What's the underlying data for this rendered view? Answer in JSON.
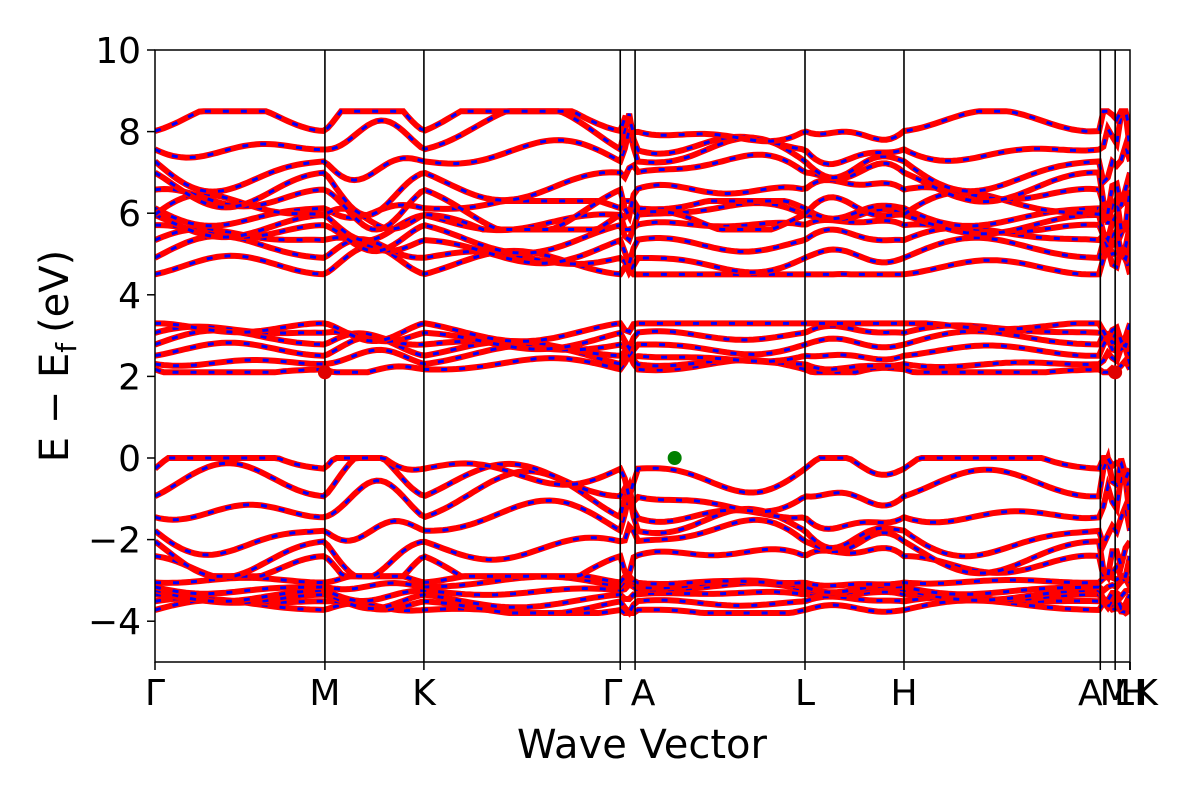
{
  "chart_data": {
    "type": "line",
    "title": "",
    "xlabel": "Wave Vector",
    "ylabel": "E − E",
    "ylabel_sub": "f",
    "ylabel_unit": "(eV)",
    "ylim": [
      -5,
      10
    ],
    "yticks": [
      -4,
      -2,
      0,
      2,
      4,
      6,
      8,
      10
    ],
    "ytick_labels": [
      "−4",
      "−2",
      "0",
      "2",
      "4",
      "6",
      "8",
      "10"
    ],
    "x_range": [
      0,
      5.91
    ],
    "kpoints": [
      {
        "label": "Γ",
        "x": 0.0
      },
      {
        "label": "M",
        "x": 1.03
      },
      {
        "label": "K",
        "x": 1.63
      },
      {
        "label": "Γ",
        "x": 2.82
      },
      {
        "label": "A",
        "x": 2.91
      },
      {
        "label": "L",
        "x": 3.94
      },
      {
        "label": "H",
        "x": 4.54
      },
      {
        "label": "A",
        "x": 5.73
      },
      {
        "label": "M",
        "x": 5.82
      },
      {
        "label": "L",
        "x": 5.91
      },
      {
        "label": "H",
        "x": 5.91
      },
      {
        "label": "K",
        "x": 5.91
      }
    ],
    "band_colors": {
      "primary": "#ff0000",
      "secondary": "#0000ff"
    },
    "band_groups": [
      {
        "name": "",
        "min": -3.8,
        "max": -2.9
      },
      {
        "name": "",
        "min": -2.9,
        "max": 0.0
      },
      {
        "name": "",
        "min": 2.1,
        "max": 3.3
      },
      {
        "name": "",
        "min": 4.5,
        "max": 6.3
      },
      {
        "name": "",
        "min": 5.6,
        "max": 8.5
      }
    ],
    "markers": [
      {
        "name": "vbm",
        "x": 3.15,
        "y": 0.0,
        "color": "#008000"
      },
      {
        "name": "cbm",
        "x": 1.03,
        "y": 2.1,
        "color": "#e00000"
      },
      {
        "name": "cbm",
        "x": 5.82,
        "y": 2.1,
        "color": "#e00000"
      }
    ],
    "grid": false,
    "legend": "none"
  }
}
